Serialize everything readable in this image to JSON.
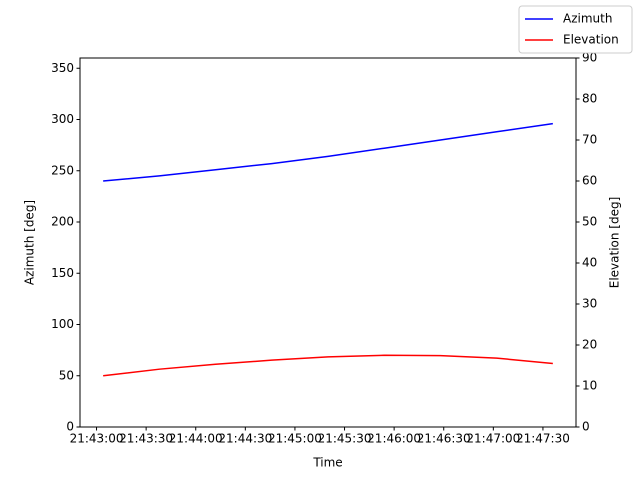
{
  "chart_data": {
    "type": "line",
    "xlabel": "Time",
    "ylabel": "Azimuth [deg]",
    "y2label": "Elevation [deg]",
    "x": [
      "21:43:04",
      "21:43:38",
      "21:44:12",
      "21:44:46",
      "21:45:20",
      "21:45:54",
      "21:46:28",
      "21:47:02",
      "21:47:36"
    ],
    "series": [
      {
        "name": "Azimuth",
        "color": "#0000ff",
        "values": [
          240,
          245,
          251,
          257,
          264,
          272,
          280,
          288,
          296
        ]
      },
      {
        "name": "Elevation",
        "color": "#ff0000",
        "axis": "y2",
        "values": [
          12.5,
          14.1,
          15.3,
          16.3,
          17.1,
          17.5,
          17.4,
          16.8,
          15.5
        ]
      }
    ],
    "xlim": [
      "21:42:50",
      "21:47:50"
    ],
    "xticks": [
      "21:43:00",
      "21:43:30",
      "21:44:00",
      "21:44:30",
      "21:45:00",
      "21:45:30",
      "21:46:00",
      "21:46:30",
      "21:47:00",
      "21:47:30"
    ],
    "ylim": [
      0,
      360
    ],
    "yticks": [
      0,
      50,
      100,
      150,
      200,
      250,
      300,
      350
    ],
    "y2lim": [
      0,
      90
    ],
    "y2ticks": [
      0,
      10,
      20,
      30,
      40,
      50,
      60,
      70,
      80,
      90
    ],
    "legend": "upper right"
  }
}
